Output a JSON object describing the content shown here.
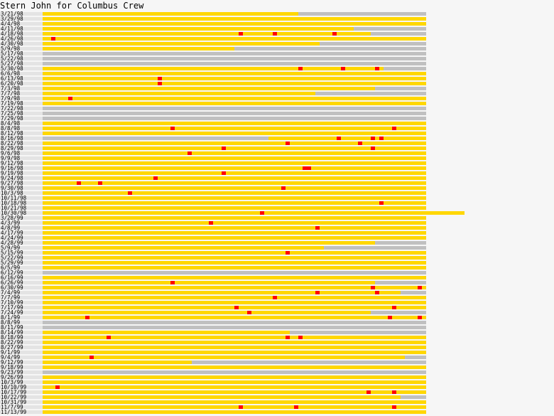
{
  "title": "Stern John for Columbus Crew",
  "colors": {
    "played": "#ffd700",
    "unplayed": "#c0c0c0",
    "goal": "#ff0000",
    "label_bg": "#e4e4e4",
    "background": "#f6f6f6"
  },
  "chart_data": {
    "type": "bar",
    "title": "Stern John for Columbus Crew",
    "unit": "minutes",
    "match_length_minutes": 90,
    "matches": [
      {
        "date": "3/21/98",
        "start": 0,
        "end": 60,
        "goals": []
      },
      {
        "date": "3/29/98",
        "start": 0,
        "end": 90,
        "goals": []
      },
      {
        "date": "4/4/98",
        "start": 0,
        "end": 90,
        "goals": []
      },
      {
        "date": "4/11/98",
        "start": 0,
        "end": 73,
        "goals": []
      },
      {
        "date": "4/18/98",
        "start": 0,
        "end": 77,
        "goals": [
          47,
          55,
          69
        ]
      },
      {
        "date": "4/26/98",
        "start": 0,
        "end": 90,
        "goals": [
          3
        ]
      },
      {
        "date": "4/30/98",
        "start": 0,
        "end": 65,
        "goals": []
      },
      {
        "date": "5/9/98",
        "start": 0,
        "end": 45,
        "goals": []
      },
      {
        "date": "5/17/98",
        "start": 0,
        "end": 0,
        "goals": []
      },
      {
        "date": "5/22/98",
        "start": 0,
        "end": 0,
        "goals": []
      },
      {
        "date": "5/27/98",
        "start": 0,
        "end": 0,
        "goals": []
      },
      {
        "date": "5/30/98",
        "start": 0,
        "end": 80,
        "goals": [
          61,
          71,
          79
        ]
      },
      {
        "date": "6/6/98",
        "start": 0,
        "end": 90,
        "goals": []
      },
      {
        "date": "6/13/98",
        "start": 0,
        "end": 90,
        "goals": [
          28
        ]
      },
      {
        "date": "6/20/98",
        "start": 0,
        "end": 90,
        "goals": [
          28
        ]
      },
      {
        "date": "7/3/98",
        "start": 0,
        "end": 78,
        "goals": []
      },
      {
        "date": "7/7/98",
        "start": 0,
        "end": 64,
        "goals": []
      },
      {
        "date": "7/9/98",
        "start": 0,
        "end": 90,
        "goals": [
          7
        ]
      },
      {
        "date": "7/19/98",
        "start": 0,
        "end": 90,
        "goals": []
      },
      {
        "date": "7/22/98",
        "start": 0,
        "end": 0,
        "goals": []
      },
      {
        "date": "7/25/98",
        "start": 0,
        "end": 0,
        "goals": []
      },
      {
        "date": "7/29/98",
        "start": 0,
        "end": 0,
        "goals": []
      },
      {
        "date": "8/4/98",
        "start": 0,
        "end": 90,
        "goals": []
      },
      {
        "date": "8/8/98",
        "start": 0,
        "end": 90,
        "goals": [
          31,
          83
        ]
      },
      {
        "date": "8/12/98",
        "start": 0,
        "end": 90,
        "goals": []
      },
      {
        "date": "8/16/98",
        "start": 53,
        "end": 90,
        "goals": [
          70,
          78,
          80
        ]
      },
      {
        "date": "8/22/98",
        "start": 0,
        "end": 90,
        "goals": [
          58,
          75
        ]
      },
      {
        "date": "8/29/98",
        "start": 0,
        "end": 90,
        "goals": [
          43,
          78
        ]
      },
      {
        "date": "9/6/98",
        "start": 0,
        "end": 90,
        "goals": [
          35
        ]
      },
      {
        "date": "9/9/98",
        "start": 0,
        "end": 90,
        "goals": []
      },
      {
        "date": "9/12/98",
        "start": 0,
        "end": 90,
        "goals": []
      },
      {
        "date": "9/16/98",
        "start": 0,
        "end": 90,
        "goals": [
          62,
          63
        ]
      },
      {
        "date": "9/19/98",
        "start": 0,
        "end": 90,
        "goals": [
          43
        ]
      },
      {
        "date": "9/24/98",
        "start": 0,
        "end": 90,
        "goals": [
          27
        ]
      },
      {
        "date": "9/27/98",
        "start": 0,
        "end": 90,
        "goals": [
          9,
          14
        ]
      },
      {
        "date": "9/30/98",
        "start": 0,
        "end": 90,
        "goals": [
          57
        ]
      },
      {
        "date": "10/3/98",
        "start": 0,
        "end": 90,
        "goals": [
          21
        ]
      },
      {
        "date": "10/11/98",
        "start": 0,
        "end": 90,
        "goals": []
      },
      {
        "date": "10/18/98",
        "start": 0,
        "end": 90,
        "goals": [
          80
        ]
      },
      {
        "date": "10/21/98",
        "start": 0,
        "end": 90,
        "goals": []
      },
      {
        "date": "10/30/98",
        "start": 0,
        "end": 99,
        "goals": [
          52
        ]
      },
      {
        "date": "3/28/99",
        "start": 0,
        "end": 90,
        "goals": []
      },
      {
        "date": "4/3/99",
        "start": 0,
        "end": 90,
        "goals": [
          40
        ]
      },
      {
        "date": "4/8/99",
        "start": 0,
        "end": 90,
        "goals": [
          65
        ]
      },
      {
        "date": "4/17/99",
        "start": 0,
        "end": 90,
        "goals": []
      },
      {
        "date": "4/24/99",
        "start": 0,
        "end": 90,
        "goals": []
      },
      {
        "date": "4/28/99",
        "start": 0,
        "end": 78,
        "goals": []
      },
      {
        "date": "5/9/99",
        "start": 0,
        "end": 66,
        "goals": []
      },
      {
        "date": "5/15/99",
        "start": 0,
        "end": 90,
        "goals": [
          58
        ]
      },
      {
        "date": "5/22/99",
        "start": 0,
        "end": 90,
        "goals": []
      },
      {
        "date": "5/29/99",
        "start": 0,
        "end": 90,
        "goals": []
      },
      {
        "date": "6/5/99",
        "start": 0,
        "end": 90,
        "goals": []
      },
      {
        "date": "6/12/99",
        "start": 0,
        "end": 0,
        "goals": []
      },
      {
        "date": "6/16/99",
        "start": 0,
        "end": 90,
        "goals": []
      },
      {
        "date": "6/26/99",
        "start": 0,
        "end": 78,
        "goals": [
          31
        ]
      },
      {
        "date": "6/30/99",
        "start": 0,
        "end": 90,
        "goals": [
          78,
          89
        ]
      },
      {
        "date": "7/4/99",
        "start": 0,
        "end": 84,
        "goals": [
          65,
          79
        ]
      },
      {
        "date": "7/7/99",
        "start": 0,
        "end": 90,
        "goals": [
          55
        ]
      },
      {
        "date": "7/10/99",
        "start": 0,
        "end": 90,
        "goals": []
      },
      {
        "date": "7/17/99",
        "start": 0,
        "end": 90,
        "goals": [
          46,
          83
        ]
      },
      {
        "date": "7/24/99",
        "start": 0,
        "end": 77,
        "goals": [
          49
        ]
      },
      {
        "date": "8/1/99",
        "start": 0,
        "end": 90,
        "goals": [
          11,
          82,
          89
        ]
      },
      {
        "date": "8/8/99",
        "start": 0,
        "end": 0,
        "goals": []
      },
      {
        "date": "8/11/99",
        "start": 0,
        "end": 0,
        "goals": []
      },
      {
        "date": "8/14/99",
        "start": 0,
        "end": 58,
        "goals": []
      },
      {
        "date": "8/18/99",
        "start": 0,
        "end": 90,
        "goals": [
          16,
          58,
          61
        ]
      },
      {
        "date": "8/22/99",
        "start": 0,
        "end": 90,
        "goals": []
      },
      {
        "date": "8/27/99",
        "start": 0,
        "end": 90,
        "goals": []
      },
      {
        "date": "9/1/99",
        "start": 0,
        "end": 90,
        "goals": []
      },
      {
        "date": "9/4/99",
        "start": 0,
        "end": 85,
        "goals": [
          12
        ]
      },
      {
        "date": "9/12/99",
        "start": 0,
        "end": 35,
        "goals": []
      },
      {
        "date": "9/18/99",
        "start": 0,
        "end": 90,
        "goals": []
      },
      {
        "date": "9/23/99",
        "start": 0,
        "end": 0,
        "goals": []
      },
      {
        "date": "9/26/99",
        "start": 0,
        "end": 90,
        "goals": []
      },
      {
        "date": "10/3/99",
        "start": 0,
        "end": 90,
        "goals": []
      },
      {
        "date": "10/10/99",
        "start": 0,
        "end": 90,
        "goals": [
          4
        ]
      },
      {
        "date": "10/17/99",
        "start": 0,
        "end": 90,
        "goals": [
          77,
          83
        ]
      },
      {
        "date": "10/22/99",
        "start": 0,
        "end": 84,
        "goals": []
      },
      {
        "date": "10/31/99",
        "start": 0,
        "end": 90,
        "goals": []
      },
      {
        "date": "11/7/99",
        "start": 0,
        "end": 90,
        "goals": [
          47,
          60,
          83
        ]
      },
      {
        "date": "11/13/99",
        "start": 0,
        "end": 90,
        "goals": []
      }
    ]
  }
}
